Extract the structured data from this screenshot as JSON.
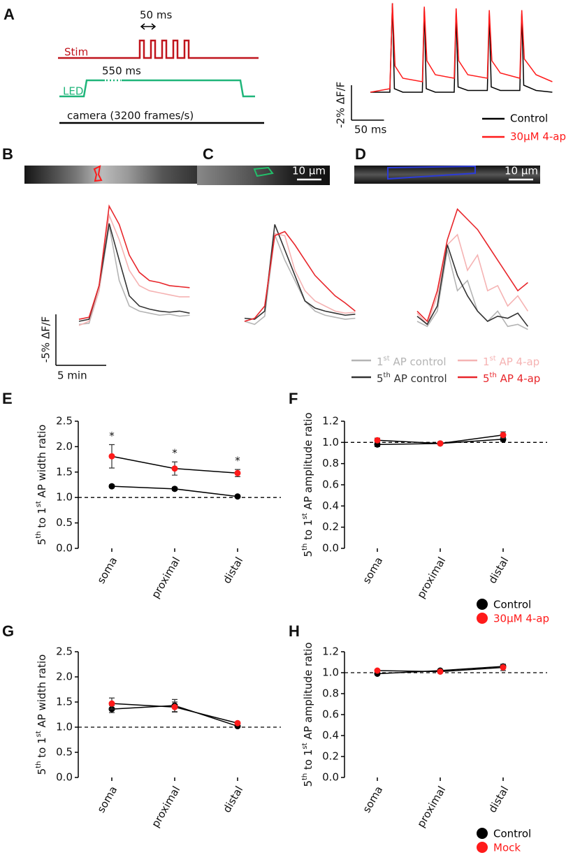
{
  "panel_labels": [
    "A",
    "B",
    "C",
    "D",
    "E",
    "F",
    "G",
    "H"
  ],
  "protocol": {
    "pulse_interval": "50 ms",
    "stim": "Stim",
    "led_duration": "550 ms",
    "led": "LED",
    "camera": "camera (3200 frames/s)"
  },
  "images": {
    "C": {
      "scale_label": "10 µm"
    },
    "D": {
      "scale_label": "10 µm"
    }
  },
  "chart_data": [
    {
      "type": "trace",
      "scale_y_label": "-2% ΔF/F",
      "scale_x_label": "50 ms",
      "scale_bar_y": 2,
      "scale_bar_x": 50,
      "series": [
        {
          "name": "Control",
          "color": "#000000",
          "x": [
            0,
            30,
            34,
            37,
            50,
            80,
            83,
            86,
            100,
            129,
            132,
            135,
            150,
            180,
            183,
            186,
            200,
            230,
            233,
            236,
            255,
            280
          ],
          "values": [
            0,
            0,
            5.1,
            0.2,
            0,
            0,
            4.8,
            0.2,
            0,
            0,
            4.6,
            0.3,
            0.1,
            0.1,
            4.5,
            0.3,
            0.1,
            0.1,
            4.5,
            0.4,
            0.1,
            0
          ]
        },
        {
          "name": "30µM 4-ap",
          "color": "#ff1a1a",
          "x": [
            0,
            30,
            34,
            38,
            50,
            80,
            83,
            87,
            100,
            129,
            132,
            136,
            150,
            180,
            183,
            187,
            200,
            230,
            233,
            237,
            255,
            280
          ],
          "values": [
            0,
            0.2,
            5.1,
            1.5,
            0.8,
            0.6,
            4.9,
            1.8,
            1.0,
            0.8,
            4.8,
            1.8,
            1.0,
            0.8,
            4.7,
            1.8,
            1.1,
            0.8,
            4.7,
            1.9,
            1.0,
            0.6
          ]
        }
      ]
    },
    {
      "type": "trace_panels",
      "scale_y_label": "-5% ΔF/F",
      "scale_x_label": "5 min",
      "scale_bar_y": 5,
      "scale_bar_x": 5,
      "x": [
        0,
        1,
        2,
        3,
        4,
        5,
        6,
        7,
        8,
        9,
        10,
        11
      ],
      "series": [
        {
          "name": "1st AP control",
          "color": "#b4b4b4",
          "values": [
            [
              -0.3,
              -0.2,
              3,
              9.4,
              4,
              1.5,
              1,
              0.8,
              0.6,
              0.7,
              0.5,
              0.6
            ],
            [
              0,
              -0.3,
              0.5,
              8.5,
              6,
              4,
              2,
              1,
              0.6,
              0.4,
              0.2,
              0.3
            ],
            [
              0,
              -0.5,
              1,
              7,
              3,
              4,
              1,
              0,
              1,
              -0.5,
              -0.3,
              -0.8
            ]
          ]
        },
        {
          "name": "5th AP control",
          "color": "#333333",
          "values": [
            [
              0,
              0.2,
              3.5,
              9.6,
              6,
              2.5,
              1.5,
              1.2,
              1,
              0.9,
              1,
              0.8
            ],
            [
              0.3,
              0.2,
              1,
              9.5,
              7,
              4.5,
              2,
              1.3,
              1,
              0.8,
              0.6,
              0.7
            ],
            [
              0.5,
              -0.3,
              1.5,
              7.5,
              4.5,
              2.5,
              1,
              0,
              0.5,
              0.3,
              0.8,
              -0.5
            ]
          ]
        },
        {
          "name": "1st AP 4-ap",
          "color": "#f5b3b3",
          "values": [
            [
              -0.4,
              0,
              3,
              10.4,
              8,
              5,
              3.5,
              3,
              2.8,
              2.6,
              2.4,
              2.4
            ],
            [
              0,
              0.3,
              1.5,
              8.6,
              8.4,
              5,
              3,
              2,
              1.5,
              1,
              0.8,
              0.9
            ],
            [
              0.8,
              -0.3,
              2.5,
              7.5,
              8.5,
              5,
              6.5,
              3,
              3.5,
              1.5,
              2.5,
              1
            ]
          ]
        },
        {
          "name": "5th AP 4-ap",
          "color": "#e8262b",
          "values": [
            [
              0.2,
              0.4,
              3.5,
              11.3,
              9.5,
              6.5,
              4.8,
              4,
              3.8,
              3.5,
              3.4,
              3.3
            ],
            [
              0,
              0.3,
              1.5,
              8.4,
              8.8,
              7.5,
              6,
              4.5,
              3.5,
              2.5,
              1.8,
              1
            ],
            [
              1,
              0,
              3,
              8,
              11,
              10,
              9,
              7.5,
              6,
              4.5,
              3,
              3.8
            ]
          ]
        }
      ]
    },
    {
      "type": "line",
      "ylabel": "5th to 1st AP width ratio",
      "categories": [
        "soma",
        "proximal",
        "distal"
      ],
      "ylim": [
        0,
        2.5
      ],
      "yticks": [
        {
          "value": 0,
          "label": "0.0"
        },
        0.5,
        {
          "value": 1,
          "label": "1.0"
        },
        1.5,
        {
          "value": 2,
          "label": "2.0"
        },
        2.5
      ],
      "refline": 1,
      "annotations": [
        "*",
        "*",
        "*"
      ],
      "series": [
        {
          "color": "#000000",
          "values": [
            1.22,
            1.17,
            1.02
          ],
          "errors": [
            0.03,
            0.03,
            0.02
          ]
        },
        {
          "color": "#ff1a1a",
          "values": [
            1.81,
            1.57,
            1.48
          ],
          "errors": [
            0.23,
            0.13,
            0.07
          ]
        }
      ]
    },
    {
      "type": "line",
      "ylabel": "5th to 1st AP amplitude ratio",
      "categories": [
        "soma",
        "proximal",
        "distal"
      ],
      "ylim": [
        0,
        1.2
      ],
      "yticks": [
        {
          "value": 0,
          "label": "0.0"
        },
        0.2,
        0.4,
        0.6,
        0.8,
        {
          "value": 1,
          "label": "1.0"
        },
        1.2
      ],
      "refline": 1,
      "legend": "below",
      "series": [
        {
          "name": "Control",
          "color": "#000000",
          "values": [
            0.98,
            0.99,
            1.03
          ],
          "errors": [
            0.02,
            0.01,
            0.02
          ]
        },
        {
          "name": "30µM 4-ap",
          "color": "#ff1a1a",
          "values": [
            1.02,
            0.99,
            1.07
          ],
          "errors": [
            0.02,
            0.01,
            0.03
          ]
        }
      ]
    },
    {
      "type": "line",
      "ylabel": "5th to 1st AP width ratio",
      "categories": [
        "soma",
        "proximal",
        "distal"
      ],
      "ylim": [
        0,
        2.5
      ],
      "yticks": [
        {
          "value": 0,
          "label": "0.0"
        },
        0.5,
        {
          "value": 1,
          "label": "1.0"
        },
        1.5,
        {
          "value": 2,
          "label": "2.0"
        },
        2.5
      ],
      "refline": 1,
      "series": [
        {
          "color": "#000000",
          "values": [
            1.36,
            1.43,
            1.02
          ],
          "errors": [
            0.07,
            0.12,
            0.02
          ]
        },
        {
          "color": "#ff1a1a",
          "values": [
            1.47,
            1.4,
            1.08
          ],
          "errors": [
            0.11,
            0.1,
            0.02
          ]
        }
      ]
    },
    {
      "type": "line",
      "ylabel": "5th to 1st AP amplitude ratio",
      "categories": [
        "soma",
        "proximal",
        "distal"
      ],
      "ylim": [
        0,
        1.2
      ],
      "yticks": [
        {
          "value": 0,
          "label": "0.0"
        },
        0.2,
        0.4,
        0.6,
        0.8,
        {
          "value": 1,
          "label": "1.0"
        },
        1.2
      ],
      "refline": 1,
      "legend": "below",
      "series": [
        {
          "name": "Control",
          "color": "#000000",
          "values": [
            0.99,
            1.02,
            1.06
          ],
          "errors": [
            0.01,
            0.01,
            0.02
          ]
        },
        {
          "name": "Mock",
          "color": "#ff1a1a",
          "values": [
            1.02,
            1.01,
            1.05
          ],
          "errors": [
            0.01,
            0.01,
            0.03
          ]
        }
      ]
    }
  ]
}
